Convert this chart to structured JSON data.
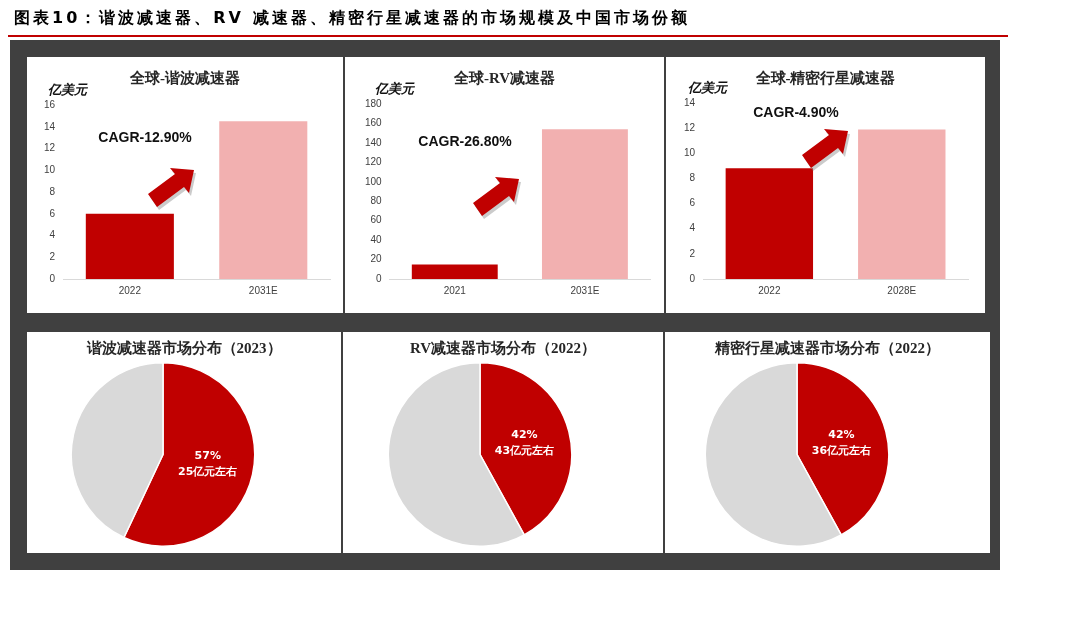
{
  "chart_data": [
    {
      "type": "other",
      "title": "图表10：谐波减速器、RV 减速器、精密行星减速器的市场规模及中国市场份额"
    },
    {
      "type": "bar",
      "title": "全球-谐波减速器",
      "ylabel": "亿美元",
      "categories": [
        "2022",
        "2031E"
      ],
      "values": [
        6,
        14.5
      ],
      "colors": [
        "#c00000",
        "#f2b0b0"
      ],
      "ylim": [
        0,
        16
      ],
      "yticks": [
        0,
        2,
        4,
        6,
        8,
        10,
        12,
        14,
        16
      ],
      "annotations": [
        "CAGR-12.90%"
      ]
    },
    {
      "type": "bar",
      "title": "全球-RV减速器",
      "ylabel": "亿美元",
      "categories": [
        "2021",
        "2031E"
      ],
      "values": [
        15,
        154
      ],
      "colors": [
        "#c00000",
        "#f2b0b0"
      ],
      "ylim": [
        0,
        180
      ],
      "yticks": [
        0,
        20,
        40,
        60,
        80,
        100,
        120,
        140,
        160,
        180
      ],
      "annotations": [
        "CAGR-26.80%"
      ]
    },
    {
      "type": "bar",
      "title": "全球-精密行星减速器",
      "ylabel": "亿美元",
      "categories": [
        "2022",
        "2028E"
      ],
      "values": [
        8.8,
        11.9
      ],
      "colors": [
        "#c00000",
        "#f2b0b0"
      ],
      "ylim": [
        0,
        14
      ],
      "yticks": [
        0,
        2,
        4,
        6,
        8,
        10,
        12,
        14
      ],
      "annotations": [
        "CAGR-4.90%"
      ]
    },
    {
      "type": "pie",
      "title": "谐波减速器市场分布（2023）",
      "categories": [
        null,
        null
      ],
      "values": [
        57,
        43
      ],
      "colors": [
        "#c00000",
        "#d9d9d9"
      ],
      "value_labels": [
        "57%\n25亿元左右",
        null
      ]
    },
    {
      "type": "pie",
      "title": "RV减速器市场分布（2022）",
      "categories": [
        null,
        null
      ],
      "values": [
        42,
        58
      ],
      "colors": [
        "#c00000",
        "#d9d9d9"
      ],
      "value_labels": [
        "42%\n43亿元左右",
        null
      ]
    },
    {
      "type": "pie",
      "title": "精密行星减速器市场分布（2022）",
      "categories": [
        null,
        null
      ],
      "values": [
        42,
        58
      ],
      "colors": [
        "#c00000",
        "#d9d9d9"
      ],
      "value_labels": [
        "42%\n36亿元左右",
        null
      ]
    }
  ]
}
